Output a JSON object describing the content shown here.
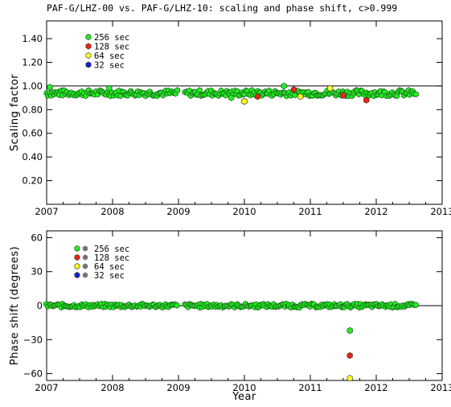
{
  "chart_data": [
    {
      "type": "scatter",
      "title": "PAF-G/LHZ-00 vs. PAF-G/LHZ-10: scaling and phase shift, c>0.999",
      "xlabel": "",
      "ylabel": "Scaling factor",
      "xlim": [
        2007.0,
        2013.0
      ],
      "ylim": [
        0.0,
        1.55
      ],
      "xticks": [
        "2007",
        "2008",
        "2009",
        "2010",
        "2011",
        "2012",
        "2013"
      ],
      "yticks": [
        "0.20",
        "0.40",
        "0.60",
        "0.80",
        "1.00",
        "1.20",
        "1.40"
      ],
      "reference_line": 1.0,
      "legend_position": "top-left",
      "legend": [
        {
          "label": "256 sec",
          "color": "#22ee22"
        },
        {
          "label": "128 sec",
          "color": "#ee2211"
        },
        {
          "label": " 64 sec",
          "color": "#ffff22"
        },
        {
          "label": " 32 sec",
          "color": "#1122cc"
        }
      ],
      "series": [
        {
          "name": "256 sec",
          "color": "#22ee22",
          "base_value": 0.94,
          "x_coverage": [
            [
              2007.0,
              2007.2
            ],
            [
              2007.2,
              2009.0
            ],
            [
              2009.1,
              2012.6
            ]
          ],
          "outliers": [
            [
              2007.05,
              0.99
            ],
            [
              2007.95,
              0.98
            ],
            [
              2009.8,
              0.9
            ],
            [
              2010.0,
              0.87
            ],
            [
              2010.6,
              1.0
            ],
            [
              2011.5,
              0.93
            ]
          ]
        },
        {
          "name": "128 sec",
          "color": "#ee2211",
          "values": [
            [
              2010.2,
              0.91
            ],
            [
              2010.75,
              0.97
            ],
            [
              2011.5,
              0.92
            ],
            [
              2011.85,
              0.88
            ]
          ]
        },
        {
          "name": " 64 sec",
          "color": "#ffff22",
          "values": [
            [
              2010.0,
              0.87
            ],
            [
              2010.85,
              0.91
            ],
            [
              2011.3,
              0.98
            ]
          ]
        },
        {
          "name": " 32 sec",
          "color": "#1122cc",
          "values": []
        }
      ]
    },
    {
      "type": "scatter",
      "title": "",
      "xlabel": "Year",
      "ylabel": "Phase shift (degrees)",
      "xlim": [
        2007.0,
        2013.0
      ],
      "ylim": [
        -66.0,
        66.0
      ],
      "xticks": [
        "2007",
        "2008",
        "2009",
        "2010",
        "2011",
        "2012",
        "2013"
      ],
      "yticks": [
        "60",
        "30",
        "0",
        "−30",
        "−60"
      ],
      "reference_line": 0,
      "legend_position": "top-left",
      "legend": [
        {
          "label": "256 sec",
          "color": "#22ee22"
        },
        {
          "label": "128 sec",
          "color": "#ee2211"
        },
        {
          "label": " 64 sec",
          "color": "#ffff22"
        },
        {
          "label": " 32 sec",
          "color": "#1122cc"
        }
      ],
      "series": [
        {
          "name": "256 sec",
          "color": "#22ee22",
          "base_value": 0.0,
          "x_coverage": [
            [
              2007.0,
              2009.0
            ],
            [
              2009.1,
              2012.6
            ]
          ],
          "outliers": [
            [
              2011.6,
              -22.0
            ]
          ]
        },
        {
          "name": "128 sec",
          "color": "#ee2211",
          "values": [
            [
              2011.6,
              -44.0
            ]
          ]
        },
        {
          "name": " 64 sec",
          "color": "#ffff22",
          "values": [
            [
              2011.6,
              -64.0
            ]
          ]
        },
        {
          "name": " 32 sec",
          "color": "#1122cc",
          "values": []
        }
      ]
    }
  ]
}
